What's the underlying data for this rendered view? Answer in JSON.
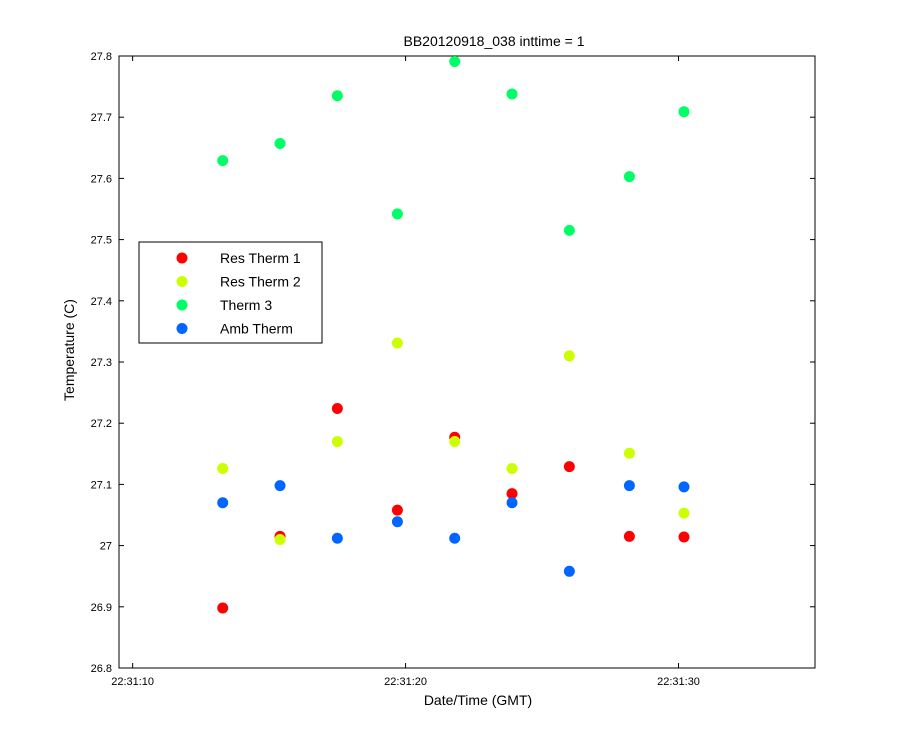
{
  "chart_data": {
    "type": "scatter",
    "title": "BB20120918_038 inttime = 1",
    "xlabel": "Date/Time (GMT)",
    "ylabel": "Temperature (C)",
    "xlim": [
      "22:31:09.5",
      "22:31:35"
    ],
    "ylim": [
      26.8,
      27.8
    ],
    "x_ticks": [
      "22:31:10",
      "22:31:20",
      "22:31:30"
    ],
    "y_ticks": [
      "26.8",
      "26.9",
      "27",
      "27.1",
      "27.2",
      "27.3",
      "27.4",
      "27.5",
      "27.6",
      "27.7",
      "27.8"
    ],
    "grid": false,
    "legend_position": "left",
    "x": [
      "22:31:13.3",
      "22:31:15.4",
      "22:31:17.5",
      "22:31:19.7",
      "22:31:21.8",
      "22:31:23.9",
      "22:31:26.0",
      "22:31:28.2",
      "22:31:30.2"
    ],
    "series": [
      {
        "name": "Res Therm 1",
        "color": "#ff0000",
        "values": [
          26.898,
          27.015,
          27.224,
          27.058,
          27.177,
          27.085,
          27.129,
          27.015,
          27.014
        ]
      },
      {
        "name": "Res Therm 2",
        "color": "#ccff00",
        "values": [
          27.126,
          27.01,
          27.17,
          27.331,
          27.17,
          27.126,
          27.31,
          27.151,
          27.053
        ]
      },
      {
        "name": "Therm 3",
        "color": "#00ff66",
        "values": [
          27.629,
          27.657,
          27.735,
          27.542,
          27.791,
          27.738,
          27.515,
          27.603,
          27.709
        ]
      },
      {
        "name": "Amb Therm",
        "color": "#0066ff",
        "values": [
          27.07,
          27.098,
          27.012,
          27.039,
          27.012,
          27.07,
          26.958,
          27.098,
          27.096
        ]
      }
    ]
  }
}
